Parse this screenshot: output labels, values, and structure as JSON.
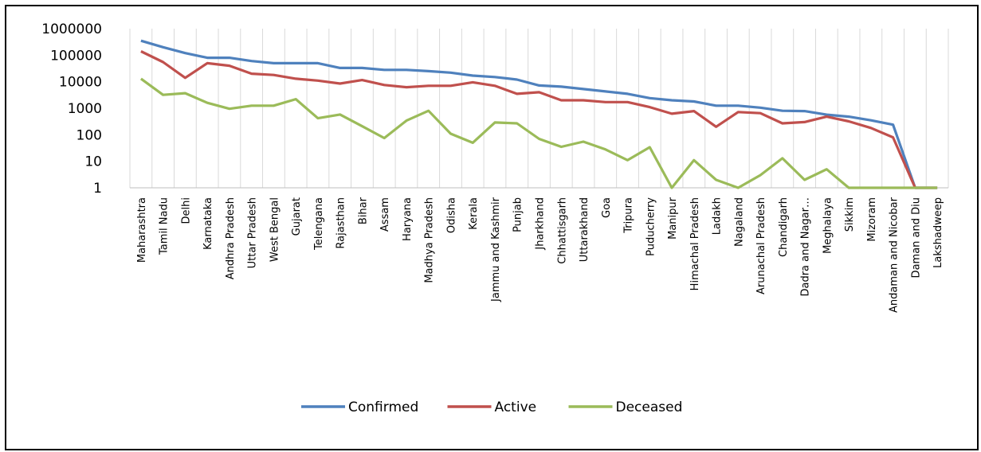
{
  "chart_data": {
    "type": "line",
    "title": "",
    "xlabel": "",
    "ylabel": "",
    "yscale": "log",
    "ylim": [
      1,
      1000000
    ],
    "yticks": [
      "1",
      "10",
      "100",
      "1000",
      "10000",
      "100000",
      "1000000"
    ],
    "grid": "vertical",
    "legend_position": "bottom",
    "categories": [
      "Maharashtra",
      "Tamil Nadu",
      "Delhi",
      "Karnataka",
      "Andhra Pradesh",
      "Uttar Pradesh",
      "West Bengal",
      "Gujarat",
      "Telengana",
      "Rajasthan",
      "Bihar",
      "Assam",
      "Haryana",
      "Madhya Pradesh",
      "Odisha",
      "Kerala",
      "Jammu and Kashmir",
      "Punjab",
      "Jharkhand",
      "Chhattisgarh",
      "Uttarakhand",
      "Goa",
      "Tripura",
      "Puducherry",
      "Manipur",
      "Himachal Pradesh",
      "Ladakh",
      "Nagaland",
      "Arunachal Pradesh",
      "Chandigarh",
      "Dadra and Nagar…",
      "Meghalaya",
      "Sikkim",
      "Mizoram",
      "Andaman and Nicobar",
      "Daman and Diu",
      "Lakshadweep"
    ],
    "series": [
      {
        "name": "Confirmed",
        "color": "#4f81bd",
        "values": [
          350000,
          200000,
          120000,
          80000,
          80000,
          60000,
          50000,
          50000,
          50000,
          33000,
          33000,
          28000,
          28000,
          25000,
          22000,
          17000,
          15000,
          12000,
          7200,
          6500,
          5300,
          4300,
          3500,
          2400,
          2000,
          1800,
          1250,
          1250,
          1050,
          800,
          780,
          570,
          480,
          350,
          240,
          1,
          1
        ]
      },
      {
        "name": "Active",
        "color": "#c0504d",
        "values": [
          140000,
          55000,
          14000,
          50000,
          40000,
          20000,
          18000,
          13000,
          11000,
          8500,
          11500,
          7500,
          6200,
          7000,
          7000,
          9500,
          7000,
          3500,
          4000,
          2000,
          2000,
          1700,
          1700,
          1100,
          620,
          780,
          200,
          720,
          650,
          270,
          300,
          480,
          320,
          180,
          80,
          1,
          1
        ]
      },
      {
        "name": "Deceased",
        "color": "#9bbb59",
        "values": [
          13000,
          3200,
          3700,
          1600,
          950,
          1250,
          1250,
          2200,
          420,
          580,
          210,
          75,
          340,
          800,
          110,
          50,
          290,
          270,
          70,
          35,
          55,
          28,
          11,
          34,
          1,
          11,
          2,
          1,
          3,
          13,
          2,
          5,
          1,
          1,
          1,
          1,
          1
        ]
      }
    ]
  }
}
